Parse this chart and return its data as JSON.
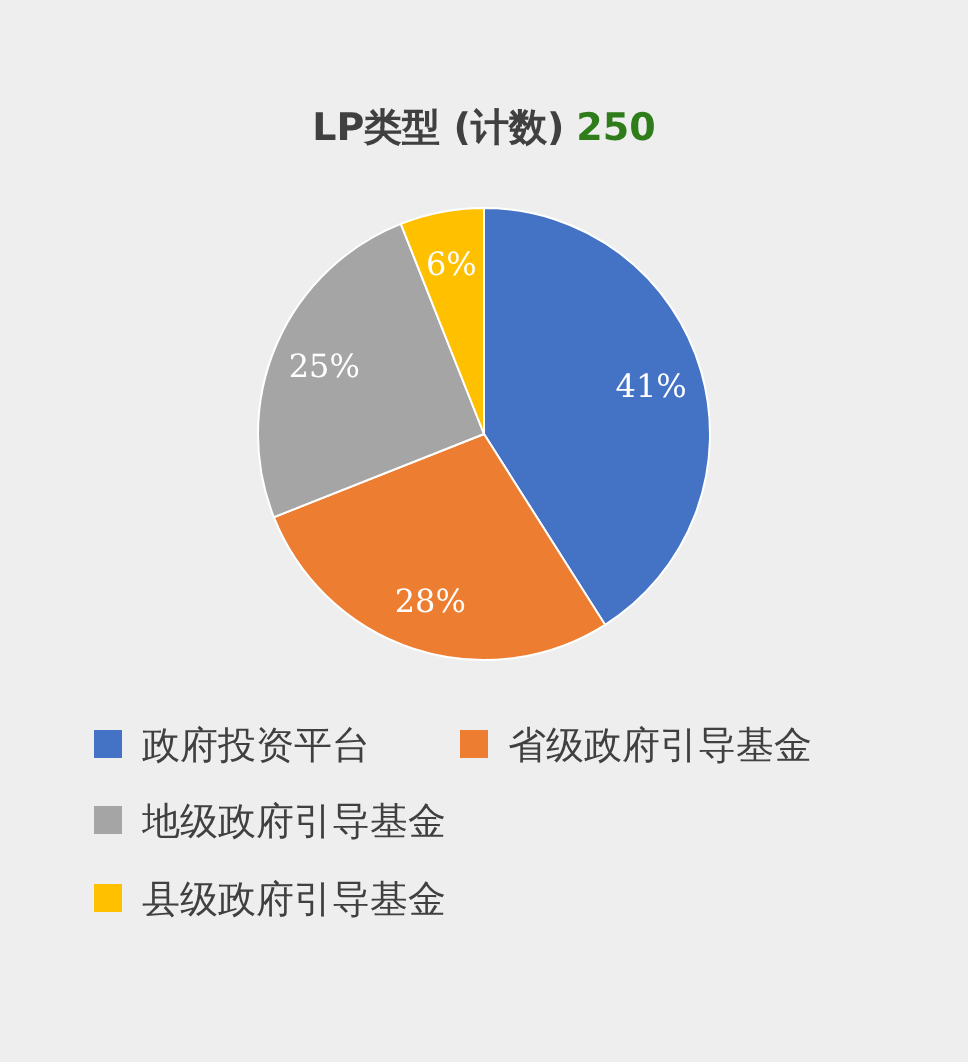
{
  "chart_data": {
    "type": "pie",
    "title": "LP类型 (计数)",
    "annotations": [
      "250"
    ],
    "categories": [
      "政府投资平台",
      "省级政府引导基金",
      "地级政府引导基金",
      "县级政府引导基金"
    ],
    "values": [
      41,
      28,
      25,
      6
    ],
    "colors": [
      "#4472c4",
      "#ed7d31",
      "#a5a5a5",
      "#ffc000"
    ],
    "value_labels": [
      "41%",
      "28%",
      "25%",
      "6%"
    ],
    "legend": "bottom"
  }
}
